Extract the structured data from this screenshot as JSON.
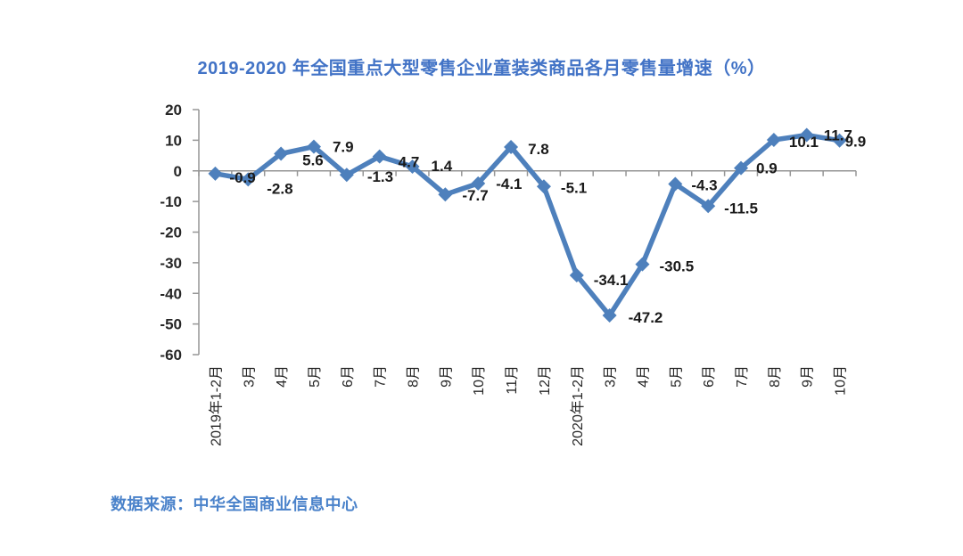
{
  "colors": {
    "background": "#FFFFFF",
    "title_text": "#4273C6",
    "source_text": "#4A82CA",
    "line": "#4E80BC",
    "marker": "#4E80BC",
    "axis": "#969696",
    "tick_label": "#262626",
    "data_label": "#1A1A1A"
  },
  "chart_data": {
    "type": "line",
    "title": "2019-2020 年全国重点大型零售企业童装类商品各月零售量增速（%）",
    "source": "数据来源：中华全国商业信息中心",
    "categories": [
      "2019年1-2月",
      "3月",
      "4月",
      "5月",
      "6月",
      "7月",
      "8月",
      "9月",
      "10月",
      "11月",
      "12月",
      "2020年1-2月",
      "3月",
      "4月",
      "5月",
      "6月",
      "7月",
      "8月",
      "9月",
      "10月"
    ],
    "values": [
      -0.9,
      -2.8,
      5.6,
      7.9,
      -1.3,
      4.7,
      1.4,
      -7.7,
      -4.1,
      7.8,
      -5.1,
      -34.1,
      -47.2,
      -30.5,
      -4.3,
      -11.5,
      0.9,
      10.1,
      11.7,
      9.9
    ],
    "ylim": [
      -60,
      20
    ],
    "yticks": [
      20,
      10,
      0,
      -10,
      -20,
      -30,
      -40,
      -50,
      -60
    ],
    "xlabel": "",
    "ylabel": "",
    "grid": false,
    "legend": "none",
    "marker": "diamond",
    "data_labels": true,
    "x_labels_rotation": -90,
    "label_offsets": {
      "dx": [
        16,
        21,
        24,
        21,
        23,
        21,
        21,
        19,
        20,
        19,
        19,
        19,
        21,
        19,
        18,
        18,
        17,
        17,
        19,
        6
      ],
      "dy": [
        10,
        16,
        13,
        6,
        8,
        12,
        5,
        7,
        6,
        8,
        7,
        11,
        8,
        8,
        7,
        8,
        6,
        8,
        6,
        7
      ]
    }
  }
}
